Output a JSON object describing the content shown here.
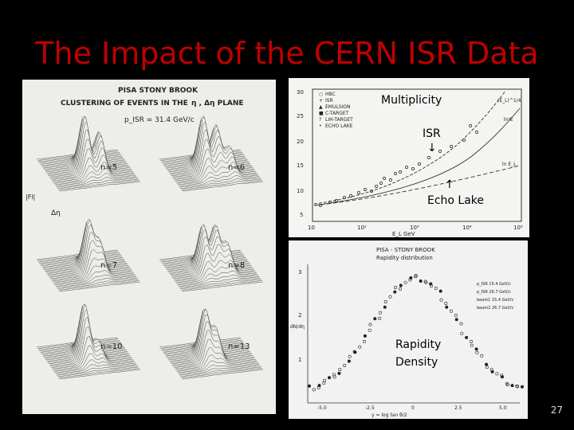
{
  "slide": {
    "title": "The Impact of the CERN ISR Data",
    "page_number": "27"
  },
  "left_figure": {
    "header1": "PISA STONY BROOK",
    "header2": "CLUSTERING OF EVENTS IN THE",
    "header2_symbols": "η , Δη  PLANE",
    "energy": "p_ISR = 31.4 GeV/c",
    "axis_y": "|Fl|",
    "axis_x": "Δη",
    "panels": [
      "n=5",
      "n=6",
      "n=7",
      "n=8",
      "n=10",
      "n=13"
    ]
  },
  "top_right_figure": {
    "legend": [
      "HBC",
      "ISR",
      "EMULSION",
      "C-TARGET",
      "LIH-TARGET",
      "ECHO LAKE"
    ],
    "y_ticks": [
      "30",
      "25",
      "20",
      "15",
      "10",
      "5"
    ],
    "x_ticks": [
      "10",
      "10²",
      "10³",
      "10⁴",
      "10⁵"
    ],
    "xlabel": "E_L  GeV",
    "annotations": [
      "(E_L)^1/4",
      "ln E_L",
      "ln²E"
    ],
    "overlay_multiplicity": "Multiplicity",
    "overlay_isr": "ISR",
    "overlay_echo": "Echo Lake",
    "arrow_down": "↓",
    "arrow_up": "↑"
  },
  "bottom_right_figure": {
    "header1": "PISA - STONY BROOK",
    "header2": "Rapidity distribution",
    "legend": [
      "p_ISR 15.4 GeV/c",
      "p_ISR 26.7 GeV/c",
      "beam1 15.4 GeV/c",
      "beam2 26.7 GeV/c"
    ],
    "y_ticks": [
      "3",
      "2",
      "1"
    ],
    "x_ticks": [
      "-5.0",
      "-2.5",
      "0",
      "2.5",
      "5.0"
    ],
    "xlabel": "y = log tan θ/2",
    "ylabel": "dN/dη",
    "overlay_rapidity_1": "Rapidity",
    "overlay_rapidity_2": "Density"
  }
}
